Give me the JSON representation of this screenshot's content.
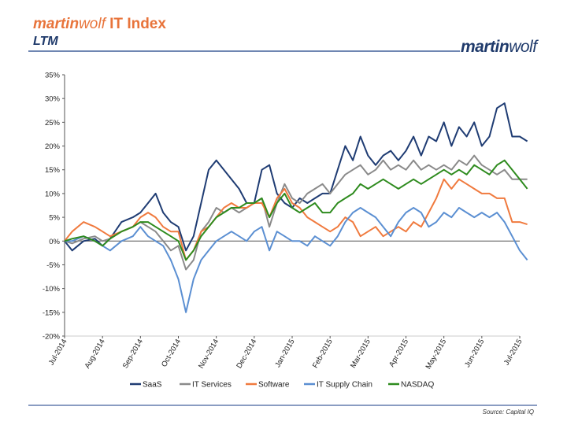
{
  "header": {
    "title_brand_bold": "martin",
    "title_brand_light": "wolf",
    "title_rest": " IT Index",
    "subtitle": "LTM",
    "logo_bold": "martin",
    "logo_light": "wolf"
  },
  "footer": {
    "source": "Source: Capital IQ"
  },
  "colors": {
    "SaaS": "#1F3C73",
    "IT Services": "#8A8A8A",
    "Software": "#F07A3E",
    "IT Supply Chain": "#5B8FD2",
    "NASDAQ": "#2E8B1E",
    "accent": "#E8743B",
    "brand": "#1F3A6B"
  },
  "chart_data": {
    "type": "line",
    "title": "",
    "xlabel": "",
    "ylabel": "",
    "ylim": [
      -20,
      35
    ],
    "y_ticks": [
      "-20%",
      "-15%",
      "-10%",
      "-5%",
      "0%",
      "5%",
      "10%",
      "15%",
      "20%",
      "25%",
      "30%",
      "35%"
    ],
    "x_ticks": [
      "Jul-2014",
      "Aug-2014",
      "Sep-2014",
      "Oct-2014",
      "Nov-2014",
      "Dec-2014",
      "Jan-2015",
      "Feb-2015",
      "Mar-2015",
      "Apr-2015",
      "May-2015",
      "Jun-2015",
      "Jul-2015"
    ],
    "grid": false,
    "legend": "bottom",
    "x_unit": "month",
    "series": [
      {
        "name": "SaaS",
        "values": [
          [
            0,
            0
          ],
          [
            0.2,
            -2
          ],
          [
            0.5,
            0
          ],
          [
            0.8,
            0.5
          ],
          [
            1.0,
            -1
          ],
          [
            1.2,
            0.5
          ],
          [
            1.5,
            4
          ],
          [
            1.8,
            5
          ],
          [
            2.0,
            6
          ],
          [
            2.2,
            8
          ],
          [
            2.4,
            10
          ],
          [
            2.6,
            6
          ],
          [
            2.8,
            4
          ],
          [
            3.0,
            3
          ],
          [
            3.2,
            -2
          ],
          [
            3.4,
            1
          ],
          [
            3.6,
            8
          ],
          [
            3.8,
            15
          ],
          [
            4.0,
            17
          ],
          [
            4.2,
            15
          ],
          [
            4.4,
            13
          ],
          [
            4.6,
            11
          ],
          [
            4.8,
            8
          ],
          [
            5.0,
            8
          ],
          [
            5.2,
            15
          ],
          [
            5.4,
            16
          ],
          [
            5.6,
            10
          ],
          [
            5.8,
            8
          ],
          [
            6.0,
            7
          ],
          [
            6.2,
            9
          ],
          [
            6.4,
            8
          ],
          [
            6.6,
            9
          ],
          [
            6.8,
            10
          ],
          [
            7.0,
            10
          ],
          [
            7.2,
            15
          ],
          [
            7.4,
            20
          ],
          [
            7.6,
            17
          ],
          [
            7.8,
            22
          ],
          [
            8.0,
            18
          ],
          [
            8.2,
            16
          ],
          [
            8.4,
            18
          ],
          [
            8.6,
            19
          ],
          [
            8.8,
            17
          ],
          [
            9.0,
            19
          ],
          [
            9.2,
            22
          ],
          [
            9.4,
            18
          ],
          [
            9.6,
            22
          ],
          [
            9.8,
            21
          ],
          [
            10.0,
            25
          ],
          [
            10.2,
            20
          ],
          [
            10.4,
            24
          ],
          [
            10.6,
            22
          ],
          [
            10.8,
            25
          ],
          [
            11.0,
            20
          ],
          [
            11.2,
            22
          ],
          [
            11.4,
            28
          ],
          [
            11.6,
            29
          ],
          [
            11.8,
            22
          ],
          [
            12.0,
            22
          ],
          [
            12.2,
            21
          ]
        ]
      },
      {
        "name": "IT Services",
        "values": [
          [
            0,
            0
          ],
          [
            0.2,
            -0.5
          ],
          [
            0.5,
            0.5
          ],
          [
            0.8,
            1
          ],
          [
            1.0,
            0
          ],
          [
            1.2,
            0.5
          ],
          [
            1.5,
            2
          ],
          [
            1.8,
            3
          ],
          [
            2.0,
            4
          ],
          [
            2.2,
            3
          ],
          [
            2.4,
            2
          ],
          [
            2.6,
            0
          ],
          [
            2.8,
            -2
          ],
          [
            3.0,
            -1
          ],
          [
            3.2,
            -6
          ],
          [
            3.4,
            -4
          ],
          [
            3.6,
            2
          ],
          [
            3.8,
            4
          ],
          [
            4.0,
            7
          ],
          [
            4.2,
            6
          ],
          [
            4.4,
            7
          ],
          [
            4.6,
            6
          ],
          [
            4.8,
            7
          ],
          [
            5.0,
            8
          ],
          [
            5.2,
            9
          ],
          [
            5.4,
            3
          ],
          [
            5.6,
            8
          ],
          [
            5.8,
            12
          ],
          [
            6.0,
            9
          ],
          [
            6.2,
            8
          ],
          [
            6.4,
            10
          ],
          [
            6.6,
            11
          ],
          [
            6.8,
            12
          ],
          [
            7.0,
            10
          ],
          [
            7.2,
            12
          ],
          [
            7.4,
            14
          ],
          [
            7.6,
            15
          ],
          [
            7.8,
            16
          ],
          [
            8.0,
            14
          ],
          [
            8.2,
            15
          ],
          [
            8.4,
            17
          ],
          [
            8.6,
            15
          ],
          [
            8.8,
            16
          ],
          [
            9.0,
            15
          ],
          [
            9.2,
            17
          ],
          [
            9.4,
            15
          ],
          [
            9.6,
            16
          ],
          [
            9.8,
            15
          ],
          [
            10.0,
            16
          ],
          [
            10.2,
            15
          ],
          [
            10.4,
            17
          ],
          [
            10.6,
            16
          ],
          [
            10.8,
            18
          ],
          [
            11.0,
            16
          ],
          [
            11.2,
            15
          ],
          [
            11.4,
            14
          ],
          [
            11.6,
            15
          ],
          [
            11.8,
            13
          ],
          [
            12.0,
            13
          ],
          [
            12.2,
            13
          ]
        ]
      },
      {
        "name": "Software",
        "values": [
          [
            0,
            0
          ],
          [
            0.2,
            2
          ],
          [
            0.5,
            4
          ],
          [
            0.8,
            3
          ],
          [
            1.0,
            2
          ],
          [
            1.2,
            1
          ],
          [
            1.5,
            2
          ],
          [
            1.8,
            3
          ],
          [
            2.0,
            5
          ],
          [
            2.2,
            6
          ],
          [
            2.4,
            5
          ],
          [
            2.6,
            3
          ],
          [
            2.8,
            2
          ],
          [
            3.0,
            2
          ],
          [
            3.2,
            -4
          ],
          [
            3.4,
            -2
          ],
          [
            3.6,
            2
          ],
          [
            3.8,
            3
          ],
          [
            4.0,
            5
          ],
          [
            4.2,
            7
          ],
          [
            4.4,
            8
          ],
          [
            4.6,
            7
          ],
          [
            4.8,
            7
          ],
          [
            5.0,
            8
          ],
          [
            5.2,
            8
          ],
          [
            5.4,
            5
          ],
          [
            5.6,
            9
          ],
          [
            5.8,
            11
          ],
          [
            6.0,
            8
          ],
          [
            6.2,
            7
          ],
          [
            6.4,
            5
          ],
          [
            6.6,
            4
          ],
          [
            6.8,
            3
          ],
          [
            7.0,
            2
          ],
          [
            7.2,
            3
          ],
          [
            7.4,
            5
          ],
          [
            7.6,
            4
          ],
          [
            7.8,
            1
          ],
          [
            8.0,
            2
          ],
          [
            8.2,
            3
          ],
          [
            8.4,
            1
          ],
          [
            8.6,
            2
          ],
          [
            8.8,
            3
          ],
          [
            9.0,
            2
          ],
          [
            9.2,
            4
          ],
          [
            9.4,
            3
          ],
          [
            9.6,
            6
          ],
          [
            9.8,
            9
          ],
          [
            10.0,
            13
          ],
          [
            10.2,
            11
          ],
          [
            10.4,
            13
          ],
          [
            10.6,
            12
          ],
          [
            10.8,
            11
          ],
          [
            11.0,
            10
          ],
          [
            11.2,
            10
          ],
          [
            11.4,
            9
          ],
          [
            11.6,
            9
          ],
          [
            11.8,
            4
          ],
          [
            12.0,
            4
          ],
          [
            12.2,
            3.5
          ]
        ]
      },
      {
        "name": "IT Supply Chain",
        "values": [
          [
            0,
            0
          ],
          [
            0.2,
            0
          ],
          [
            0.5,
            1
          ],
          [
            0.8,
            0
          ],
          [
            1.0,
            -1
          ],
          [
            1.2,
            -2
          ],
          [
            1.5,
            0
          ],
          [
            1.8,
            1
          ],
          [
            2.0,
            3
          ],
          [
            2.2,
            1
          ],
          [
            2.4,
            0
          ],
          [
            2.6,
            -1
          ],
          [
            2.8,
            -4
          ],
          [
            3.0,
            -8
          ],
          [
            3.2,
            -15
          ],
          [
            3.4,
            -8
          ],
          [
            3.6,
            -4
          ],
          [
            3.8,
            -2
          ],
          [
            4.0,
            0
          ],
          [
            4.2,
            1
          ],
          [
            4.4,
            2
          ],
          [
            4.6,
            1
          ],
          [
            4.8,
            0
          ],
          [
            5.0,
            2
          ],
          [
            5.2,
            3
          ],
          [
            5.4,
            -2
          ],
          [
            5.6,
            2
          ],
          [
            5.8,
            1
          ],
          [
            6.0,
            0
          ],
          [
            6.2,
            0
          ],
          [
            6.4,
            -1
          ],
          [
            6.6,
            1
          ],
          [
            6.8,
            0
          ],
          [
            7.0,
            -1
          ],
          [
            7.2,
            1
          ],
          [
            7.4,
            4
          ],
          [
            7.6,
            6
          ],
          [
            7.8,
            7
          ],
          [
            8.0,
            6
          ],
          [
            8.2,
            5
          ],
          [
            8.4,
            3
          ],
          [
            8.6,
            1
          ],
          [
            8.8,
            4
          ],
          [
            9.0,
            6
          ],
          [
            9.2,
            7
          ],
          [
            9.4,
            6
          ],
          [
            9.6,
            3
          ],
          [
            9.8,
            4
          ],
          [
            10.0,
            6
          ],
          [
            10.2,
            5
          ],
          [
            10.4,
            7
          ],
          [
            10.6,
            6
          ],
          [
            10.8,
            5
          ],
          [
            11.0,
            6
          ],
          [
            11.2,
            5
          ],
          [
            11.4,
            6
          ],
          [
            11.6,
            4
          ],
          [
            11.8,
            1
          ],
          [
            12.0,
            -2
          ],
          [
            12.2,
            -4
          ]
        ]
      },
      {
        "name": "NASDAQ",
        "values": [
          [
            0,
            0
          ],
          [
            0.2,
            0.5
          ],
          [
            0.5,
            1
          ],
          [
            0.8,
            0
          ],
          [
            1.0,
            -1
          ],
          [
            1.2,
            0.5
          ],
          [
            1.5,
            2
          ],
          [
            1.8,
            3
          ],
          [
            2.0,
            4
          ],
          [
            2.2,
            4
          ],
          [
            2.4,
            3
          ],
          [
            2.6,
            2
          ],
          [
            2.8,
            1
          ],
          [
            3.0,
            0
          ],
          [
            3.2,
            -4
          ],
          [
            3.4,
            -2
          ],
          [
            3.6,
            1
          ],
          [
            3.8,
            3
          ],
          [
            4.0,
            5
          ],
          [
            4.2,
            6
          ],
          [
            4.4,
            7
          ],
          [
            4.6,
            7
          ],
          [
            4.8,
            8
          ],
          [
            5.0,
            8
          ],
          [
            5.2,
            9
          ],
          [
            5.4,
            5
          ],
          [
            5.6,
            8
          ],
          [
            5.8,
            10
          ],
          [
            6.0,
            7
          ],
          [
            6.2,
            6
          ],
          [
            6.4,
            7
          ],
          [
            6.6,
            8
          ],
          [
            6.8,
            6
          ],
          [
            7.0,
            6
          ],
          [
            7.2,
            8
          ],
          [
            7.4,
            9
          ],
          [
            7.6,
            10
          ],
          [
            7.8,
            12
          ],
          [
            8.0,
            11
          ],
          [
            8.2,
            12
          ],
          [
            8.4,
            13
          ],
          [
            8.6,
            12
          ],
          [
            8.8,
            11
          ],
          [
            9.0,
            12
          ],
          [
            9.2,
            13
          ],
          [
            9.4,
            12
          ],
          [
            9.6,
            13
          ],
          [
            9.8,
            14
          ],
          [
            10.0,
            15
          ],
          [
            10.2,
            14
          ],
          [
            10.4,
            15
          ],
          [
            10.6,
            14
          ],
          [
            10.8,
            16
          ],
          [
            11.0,
            15
          ],
          [
            11.2,
            14
          ],
          [
            11.4,
            16
          ],
          [
            11.6,
            17
          ],
          [
            11.8,
            15
          ],
          [
            12.0,
            13
          ],
          [
            12.2,
            11
          ]
        ]
      }
    ]
  }
}
